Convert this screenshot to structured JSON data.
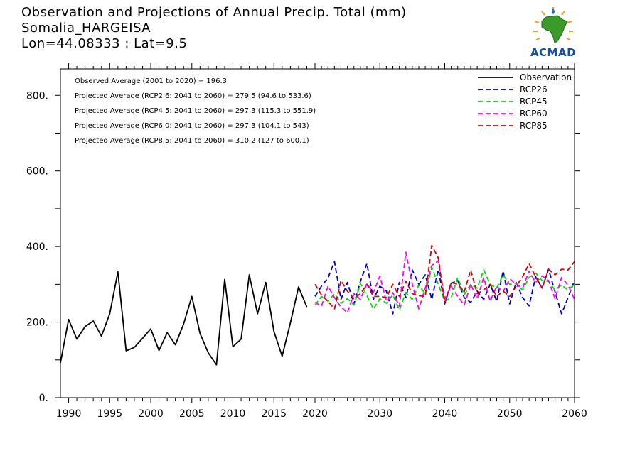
{
  "header": {
    "title_line1": "Observation and Projections of Annual Precip. Total (mm)",
    "title_line2": "Somalia_HARGEISA",
    "title_line3": "Lon=44.08333 : Lat=9.5"
  },
  "logo": {
    "text": "ACMAD",
    "icon": "africa-map-icon"
  },
  "annotations": [
    "Observed Average (2001 to 2020) = 196.3",
    "Projected Average (RCP2.6: 2041 to 2060) = 279.5 (94.6 to 533.6)",
    "Projected Average (RCP4.5: 2041 to 2060) = 297.3 (115.3 to 551.9)",
    "Projected Average (RCP6.0: 2041 to 2060) = 297.3 (104.1 to 543)",
    "Projected Average (RCP8.5: 2041 to 2060) = 310.2 (127 to 600.1)"
  ],
  "chart_data": {
    "type": "line",
    "xlim": [
      1989,
      2060
    ],
    "ylim": [
      0,
      870
    ],
    "x_ticks": [
      1990,
      1995,
      2000,
      2005,
      2010,
      2015,
      2020,
      2030,
      2040,
      2050,
      2060
    ],
    "y_ticks": [
      0,
      200,
      400,
      600,
      800
    ],
    "y_tick_labels": [
      "0.",
      "200.",
      "400.",
      "600.",
      "800."
    ],
    "legend_position": "top-right",
    "colors": {
      "Observation": "#000000",
      "RCP26": "#0000cc",
      "RCP45": "#00dd00",
      "RCP60": "#ff00ff",
      "RCP85": "#dd0000"
    },
    "series": [
      {
        "name": "Observation",
        "style": "solid",
        "x": [
          1989,
          1990,
          1991,
          1992,
          1993,
          1994,
          1995,
          1996,
          1997,
          1998,
          1999,
          2000,
          2001,
          2002,
          2003,
          2004,
          2005,
          2006,
          2007,
          2008,
          2009,
          2010,
          2011,
          2012,
          2013,
          2014,
          2015,
          2016,
          2017,
          2018,
          2019
        ],
        "values": [
          92,
          207,
          155,
          188,
          203,
          163,
          222,
          333,
          124,
          133,
          157,
          182,
          125,
          172,
          140,
          195,
          268,
          170,
          119,
          87,
          313,
          135,
          155,
          325,
          222,
          305,
          175,
          110,
          198,
          293,
          240
        ]
      },
      {
        "name": "RCP26",
        "style": "dashed",
        "x": [
          2020,
          2021,
          2022,
          2023,
          2024,
          2025,
          2026,
          2027,
          2028,
          2029,
          2030,
          2031,
          2032,
          2033,
          2034,
          2035,
          2036,
          2037,
          2038,
          2039,
          2040,
          2041,
          2042,
          2043,
          2044,
          2045,
          2046,
          2047,
          2048,
          2049,
          2050,
          2051,
          2052,
          2053,
          2054,
          2055,
          2056,
          2057,
          2058,
          2059,
          2060
        ],
        "values": [
          268,
          295,
          317,
          360,
          260,
          305,
          248,
          308,
          355,
          260,
          295,
          282,
          222,
          305,
          265,
          338,
          300,
          325,
          260,
          340,
          248,
          303,
          310,
          265,
          252,
          282,
          260,
          300,
          255,
          335,
          248,
          305,
          265,
          243,
          320,
          290,
          340,
          280,
          222,
          265,
          310
        ]
      },
      {
        "name": "RCP45",
        "style": "dashed",
        "x": [
          2020,
          2021,
          2022,
          2023,
          2024,
          2025,
          2026,
          2027,
          2028,
          2029,
          2030,
          2031,
          2032,
          2033,
          2034,
          2035,
          2036,
          2037,
          2038,
          2039,
          2040,
          2041,
          2042,
          2043,
          2044,
          2045,
          2046,
          2047,
          2048,
          2049,
          2050,
          2051,
          2052,
          2053,
          2054,
          2055,
          2056,
          2057,
          2058,
          2059,
          2060
        ],
        "values": [
          245,
          268,
          255,
          275,
          250,
          262,
          245,
          302,
          270,
          235,
          262,
          250,
          272,
          232,
          278,
          260,
          298,
          275,
          345,
          300,
          255,
          265,
          318,
          272,
          300,
          290,
          338,
          300,
          290,
          325,
          300,
          302,
          285,
          318,
          330,
          310,
          308,
          285,
          298,
          285,
          300
        ]
      },
      {
        "name": "RCP60",
        "style": "dashed",
        "x": [
          2020,
          2021,
          2022,
          2023,
          2024,
          2025,
          2026,
          2027,
          2028,
          2029,
          2030,
          2031,
          2032,
          2033,
          2034,
          2035,
          2036,
          2037,
          2038,
          2039,
          2040,
          2041,
          2042,
          2043,
          2044,
          2045,
          2046,
          2047,
          2048,
          2049,
          2050,
          2051,
          2052,
          2053,
          2054,
          2055,
          2056,
          2057,
          2058,
          2059,
          2060
        ],
        "values": [
          252,
          242,
          295,
          265,
          240,
          225,
          275,
          260,
          302,
          278,
          322,
          255,
          278,
          242,
          385,
          300,
          235,
          290,
          350,
          362,
          262,
          295,
          268,
          245,
          300,
          262,
          318,
          255,
          295,
          280,
          315,
          300,
          290,
          335,
          305,
          322,
          310,
          262,
          318,
          298,
          260
        ]
      },
      {
        "name": "RCP85",
        "style": "dashed",
        "x": [
          2020,
          2021,
          2022,
          2023,
          2024,
          2025,
          2026,
          2027,
          2028,
          2029,
          2030,
          2031,
          2032,
          2033,
          2034,
          2035,
          2036,
          2037,
          2038,
          2039,
          2040,
          2041,
          2042,
          2043,
          2044,
          2045,
          2046,
          2047,
          2048,
          2049,
          2050,
          2051,
          2052,
          2053,
          2054,
          2055,
          2056,
          2057,
          2058,
          2059,
          2060
        ],
        "values": [
          300,
          272,
          255,
          235,
          310,
          282,
          262,
          275,
          300,
          268,
          268,
          265,
          300,
          268,
          308,
          275,
          270,
          268,
          403,
          370,
          250,
          305,
          300,
          280,
          338,
          275,
          285,
          300,
          268,
          282,
          268,
          295,
          320,
          355,
          320,
          290,
          340,
          325,
          340,
          338,
          360
        ]
      }
    ]
  }
}
